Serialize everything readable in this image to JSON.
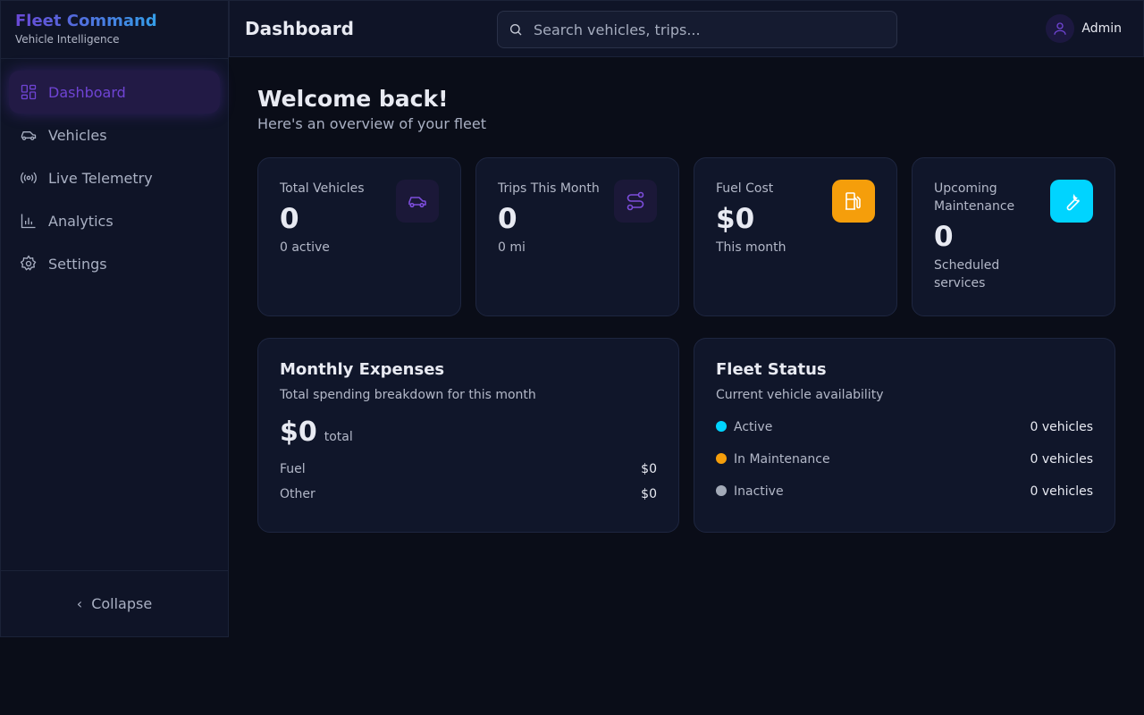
{
  "brand": {
    "title": "Fleet Command",
    "subtitle": "Vehicle Intelligence"
  },
  "sidebar": {
    "items": [
      {
        "label": "Dashboard",
        "icon": "dashboard-icon",
        "active": true
      },
      {
        "label": "Vehicles",
        "icon": "car-icon"
      },
      {
        "label": "Live Telemetry",
        "icon": "radio-icon"
      },
      {
        "label": "Analytics",
        "icon": "bar-chart-icon"
      },
      {
        "label": "Settings",
        "icon": "gear-icon"
      }
    ],
    "collapse_label": "Collapse"
  },
  "header": {
    "title": "Dashboard",
    "search_placeholder": "Search vehicles, trips...",
    "user": "Admin"
  },
  "main": {
    "welcome": "Welcome back!",
    "subtitle": "Here's an overview of your fleet",
    "stats": [
      {
        "label": "Total Vehicles",
        "value": "0",
        "sub": "0 active",
        "icon": "car-icon",
        "color": "#7c4ddb"
      },
      {
        "label": "Trips This Month",
        "value": "0",
        "sub": "0 mi",
        "icon": "route-icon",
        "color": "#7c4ddb"
      },
      {
        "label": "Fuel Cost",
        "value": "$0",
        "sub": "This month",
        "icon": "fuel-icon",
        "color": "#f59e0b"
      },
      {
        "label": "Upcoming Maintenance",
        "value": "0",
        "sub": "Scheduled services",
        "icon": "wrench-icon",
        "color": "#00d4ff"
      }
    ],
    "expenses": {
      "title": "Monthly Expenses",
      "subtitle": "Total spending breakdown for this month",
      "total": "$0",
      "total_label": "total",
      "rows": [
        {
          "label": "Fuel",
          "value": "$0"
        },
        {
          "label": "Other",
          "value": "$0"
        }
      ]
    },
    "fleet_status": {
      "title": "Fleet Status",
      "subtitle": "Current vehicle availability",
      "rows": [
        {
          "label": "Active",
          "value": "0 vehicles",
          "color": "#00d4ff"
        },
        {
          "label": "In Maintenance",
          "value": "0 vehicles",
          "color": "#f59e0b"
        },
        {
          "label": "Inactive",
          "value": "0 vehicles",
          "color": "#a3aab8"
        }
      ]
    }
  }
}
